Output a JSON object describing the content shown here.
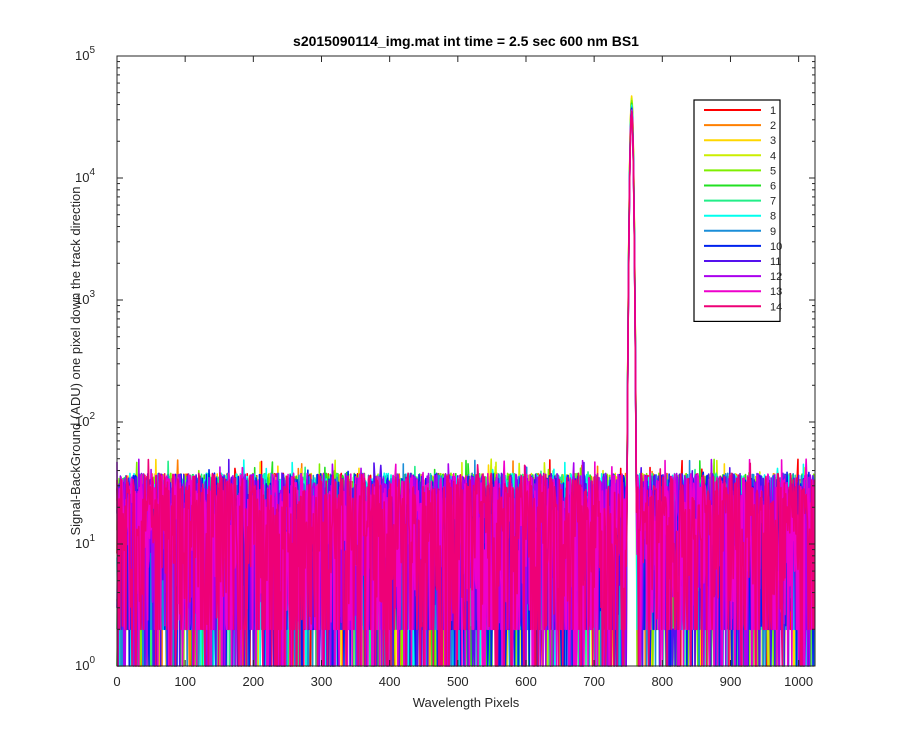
{
  "chart_data": {
    "type": "line",
    "title": "s2015090114_img.mat int time = 2.5 sec  600 nm BS1",
    "xlabel": "Wavelength Pixels",
    "ylabel": "Signal-BackGround (ADU) one pixel down the track direction",
    "xlim": [
      0,
      1024
    ],
    "ylim": [
      1,
      100000
    ],
    "yscale": "log",
    "grid": false,
    "legend_position": "top-right",
    "x_ticks": [
      "0",
      "100",
      "200",
      "300",
      "400",
      "500",
      "600",
      "700",
      "800",
      "900",
      "1000"
    ],
    "y_ticks": [
      {
        "base": "10",
        "exp": "0"
      },
      {
        "base": "10",
        "exp": "1"
      },
      {
        "base": "10",
        "exp": "2"
      },
      {
        "base": "10",
        "exp": "3"
      },
      {
        "base": "10",
        "exp": "4"
      },
      {
        "base": "10",
        "exp": "5"
      }
    ],
    "n_points": 1024,
    "noise_range": [
      1,
      50
    ],
    "peak": {
      "x_center": 755,
      "x_start": 748,
      "x_end": 762,
      "max_value": 47000
    },
    "series": [
      {
        "name": "1",
        "color": "#ff0000",
        "peak_value": 42000
      },
      {
        "name": "2",
        "color": "#ff7f00",
        "peak_value": 44000
      },
      {
        "name": "3",
        "color": "#ffd700",
        "peak_value": 47000
      },
      {
        "name": "4",
        "color": "#ccee00",
        "peak_value": 45000
      },
      {
        "name": "5",
        "color": "#7fef00",
        "peak_value": 43000
      },
      {
        "name": "6",
        "color": "#22e022",
        "peak_value": 41000
      },
      {
        "name": "7",
        "color": "#22ee88",
        "peak_value": 40000
      },
      {
        "name": "8",
        "color": "#00ffee",
        "peak_value": 39000
      },
      {
        "name": "9",
        "color": "#1a8ed8",
        "peak_value": 38000
      },
      {
        "name": "10",
        "color": "#0022ee",
        "peak_value": 37000
      },
      {
        "name": "11",
        "color": "#5511ee",
        "peak_value": 36500
      },
      {
        "name": "12",
        "color": "#aa00ee",
        "peak_value": 36000
      },
      {
        "name": "13",
        "color": "#ee00cc",
        "peak_value": 35500
      },
      {
        "name": "14",
        "color": "#ee0077",
        "peak_value": 35000
      }
    ]
  }
}
